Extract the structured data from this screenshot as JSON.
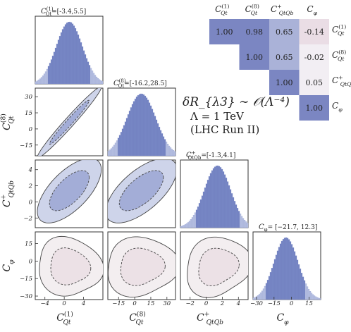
{
  "figure": {
    "annotation": [
      "δR_{λ3} ∼ 𝒪(Λ⁻⁴)",
      "Λ = 1 TeV",
      "(LHC Run II)"
    ],
    "colors": {
      "hist_dark": "#6f7fbf",
      "hist_light": "#b9c2e2",
      "hist_edge": "#8d9ad0",
      "corr_blue": "#7b86c2",
      "corr_light": "#aab2d8",
      "corr_pale": "#f2eef3",
      "corr_neg": "#eadde5",
      "ellipse_fill": "#c9cfe8",
      "ellipse_core": "#9ea9d5",
      "phi_fill": "#f3eef0",
      "phi_core": "#ece1e6",
      "axis": "#333333"
    }
  },
  "chart_data": {
    "type": "corner",
    "parameters": [
      {
        "label": "C_Qt^(1)",
        "sym": "C",
        "sub": "Qt",
        "sup": "(1)",
        "range_label": "=[-3.4,5.5]",
        "interval": [
          -3.4,
          5.5
        ],
        "center": 1.05,
        "sigma": 2.7,
        "xlim": [
          -6,
          8
        ],
        "ticks": [
          -4,
          0,
          4
        ]
      },
      {
        "label": "C_Qt^(8)",
        "sym": "C",
        "sub": "Qt",
        "sup": "(8)",
        "range_label": "=[-16.2,28.5]",
        "interval": [
          -16.2,
          28.5
        ],
        "center": 6.2,
        "sigma": 13.5,
        "xlim": [
          -25,
          38
        ],
        "ticks": [
          -15,
          0,
          15,
          30
        ]
      },
      {
        "label": "C_QtQb^+",
        "sym": "C",
        "sub": "QtQb",
        "sup": "+",
        "range_label": "=[-1.3,4.1]",
        "interval": [
          -1.3,
          4.1
        ],
        "center": 1.4,
        "sigma": 1.64,
        "xlim": [
          -3.2,
          5.2
        ],
        "ticks": [
          -2,
          0,
          2,
          4
        ]
      },
      {
        "label": "C_φ",
        "sym": "C",
        "sub": "φ",
        "sup": "",
        "range_label": "= [−21.7, 12.3]",
        "interval": [
          -21.7,
          12.3
        ],
        "center": -4.7,
        "sigma": 10.3,
        "xlim": [
          -33,
          25
        ],
        "ticks": [
          -30,
          -15,
          0,
          15
        ]
      }
    ],
    "correlation": {
      "labels": [
        "C_Qt^(1)",
        "C_Qt^(8)",
        "C_QtQb^+",
        "C_φ"
      ],
      "matrix": [
        [
          1.0,
          0.98,
          0.65,
          -0.14
        ],
        [
          null,
          1.0,
          0.65,
          -0.02
        ],
        [
          null,
          null,
          1.0,
          0.05
        ],
        [
          null,
          null,
          null,
          1.0
        ]
      ],
      "value_labels": [
        [
          "1.00",
          "0.98",
          "0.65",
          "-0.14"
        ],
        [
          null,
          "1.00",
          "0.65",
          "-0.02"
        ],
        [
          null,
          null,
          "1.00",
          "0.05"
        ],
        [
          null,
          null,
          null,
          "1.00"
        ]
      ]
    },
    "yticks": {
      "1": [
        -15,
        0,
        15,
        30
      ],
      "2": [
        -2,
        0,
        2,
        4
      ],
      "3": [
        -30,
        -15,
        0,
        15
      ]
    },
    "ylims": {
      "1": [
        -25,
        38
      ],
      "2": [
        -3.2,
        5.2
      ],
      "3": [
        -33,
        25
      ]
    },
    "grid": false
  }
}
